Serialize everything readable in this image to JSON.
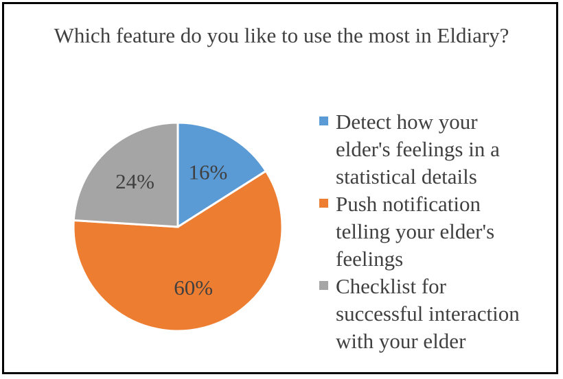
{
  "chart_data": {
    "type": "pie",
    "title": "Which feature do you like to use the most in Eldiary?",
    "slices": [
      {
        "label": "Detect how your elder's feelings in a statistical details",
        "legend_lines": "Detect how your\nelder's feelings in a\nstatistical details",
        "value": 16,
        "data_label": "16%",
        "color": "#5B9BD5"
      },
      {
        "label": "Push notification telling your elder's feelings",
        "legend_lines": "Push notification\ntelling your elder's\nfeelings",
        "value": 60,
        "data_label": "60%",
        "color": "#ED7D31"
      },
      {
        "label": "Checklist for successful interaction with your elder",
        "legend_lines": "Checklist for\nsuccessful interaction\nwith your elder",
        "value": 24,
        "data_label": "24%",
        "color": "#A5A5A5"
      }
    ],
    "legend_position": "right"
  }
}
